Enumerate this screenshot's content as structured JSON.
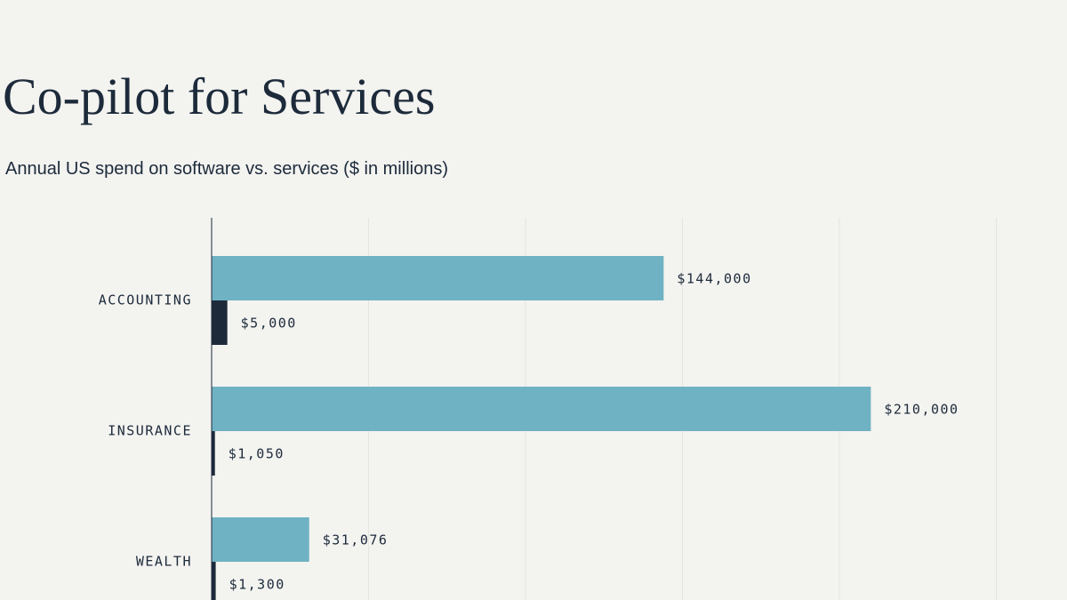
{
  "chart_data": {
    "type": "bar",
    "orientation": "horizontal",
    "title": "Co-pilot for Services",
    "subtitle": "Annual US spend on software vs. services ($ in millions)",
    "categories": [
      "ACCOUNTING",
      "INSURANCE",
      "WEALTH"
    ],
    "series": [
      {
        "color": "#6fb2c3",
        "values": [
          144000,
          210000,
          31076
        ],
        "value_labels": [
          "$144,000",
          "$210,000",
          "$31,076"
        ]
      },
      {
        "color": "#1c2a3a",
        "values": [
          5000,
          1050,
          1300
        ],
        "value_labels": [
          "$5,000",
          "$1,050",
          "$1,300"
        ]
      }
    ],
    "xlim": [
      0,
      272500
    ],
    "xticks": [
      50000,
      100000,
      150000,
      200000,
      250000
    ],
    "grid": true
  }
}
